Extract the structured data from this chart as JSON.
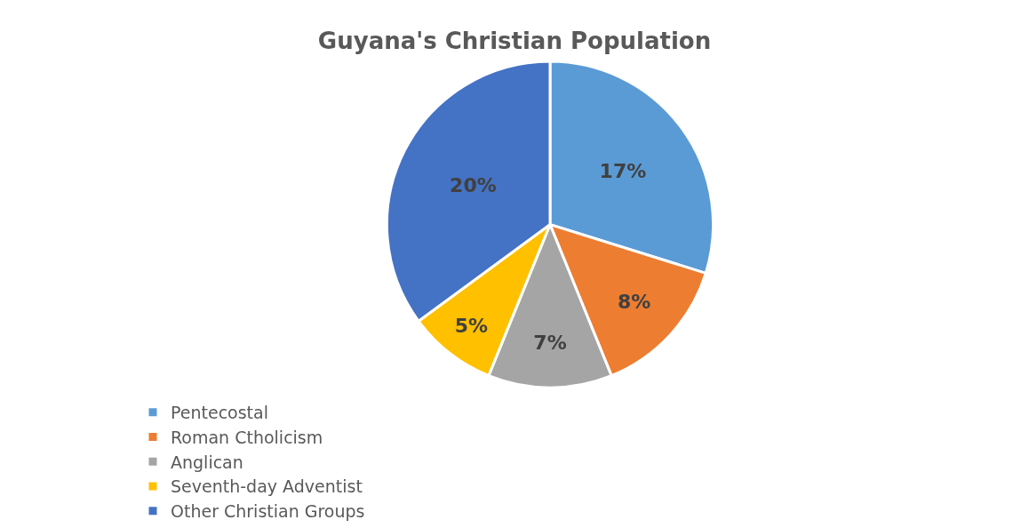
{
  "chart_data": {
    "type": "pie",
    "title": "Guyana's Christian Population",
    "categories": [
      "Pentecostal",
      "Roman Ctholicism",
      "Anglican",
      "Seventh-day Adventist",
      "Other Christian Groups"
    ],
    "values": [
      17,
      8,
      7,
      5,
      20
    ],
    "value_labels": [
      "17%",
      "8%",
      "7%",
      "5%",
      "20%"
    ],
    "colors": [
      "#5b9bd5",
      "#ed7d31",
      "#a5a5a5",
      "#ffc000",
      "#4472c4"
    ],
    "legend": "bottom"
  }
}
